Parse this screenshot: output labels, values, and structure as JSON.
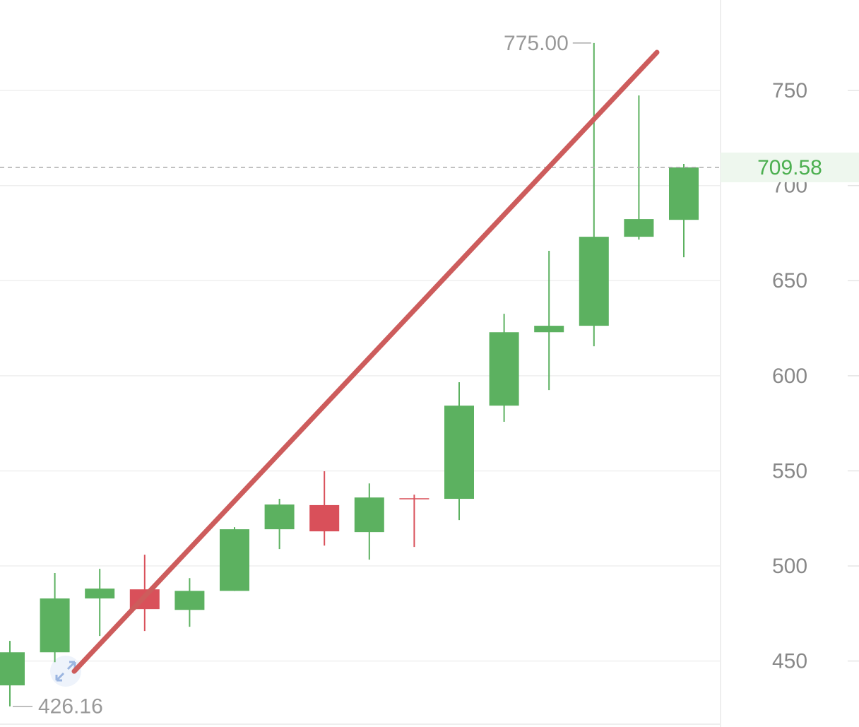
{
  "chart_data": {
    "type": "candlestick",
    "open": [
      437.2,
      454.6,
      482.9,
      487.7,
      476.9,
      486.9,
      519.3,
      532.0,
      517.8,
      535.6,
      535.3,
      584.3,
      622.9,
      626.3,
      673.1,
      682.0
    ],
    "high": [
      460.6,
      496.3,
      498.5,
      505.9,
      493.6,
      520.4,
      535.3,
      549.8,
      543.4,
      537.5,
      596.6,
      632.6,
      665.7,
      775.0,
      747.4,
      711.4
    ],
    "low": [
      426.16,
      449.4,
      463.2,
      465.8,
      468.0,
      486.9,
      508.9,
      510.7,
      503.3,
      510.0,
      524.1,
      575.8,
      592.5,
      615.5,
      671.6,
      662.3
    ],
    "close": [
      454.6,
      482.9,
      488.1,
      477.3,
      486.9,
      519.3,
      532.3,
      518.2,
      536.0,
      535.3,
      584.3,
      622.9,
      626.3,
      673.1,
      682.4,
      709.58
    ],
    "up_color": "#5cb160",
    "down_color": "#d9505a",
    "ylim": [
      416.8,
      797.6
    ],
    "yticks": [
      450,
      500,
      550,
      600,
      650,
      700,
      750
    ],
    "grid": true,
    "max_label": {
      "value": 775.0,
      "label": "775.00"
    },
    "min_label": {
      "value": 426.16,
      "label": "426.16"
    },
    "last_price": 709.58,
    "trendline": {
      "start": 444.6,
      "end": 770.1,
      "color": "#cd5c5c"
    }
  }
}
